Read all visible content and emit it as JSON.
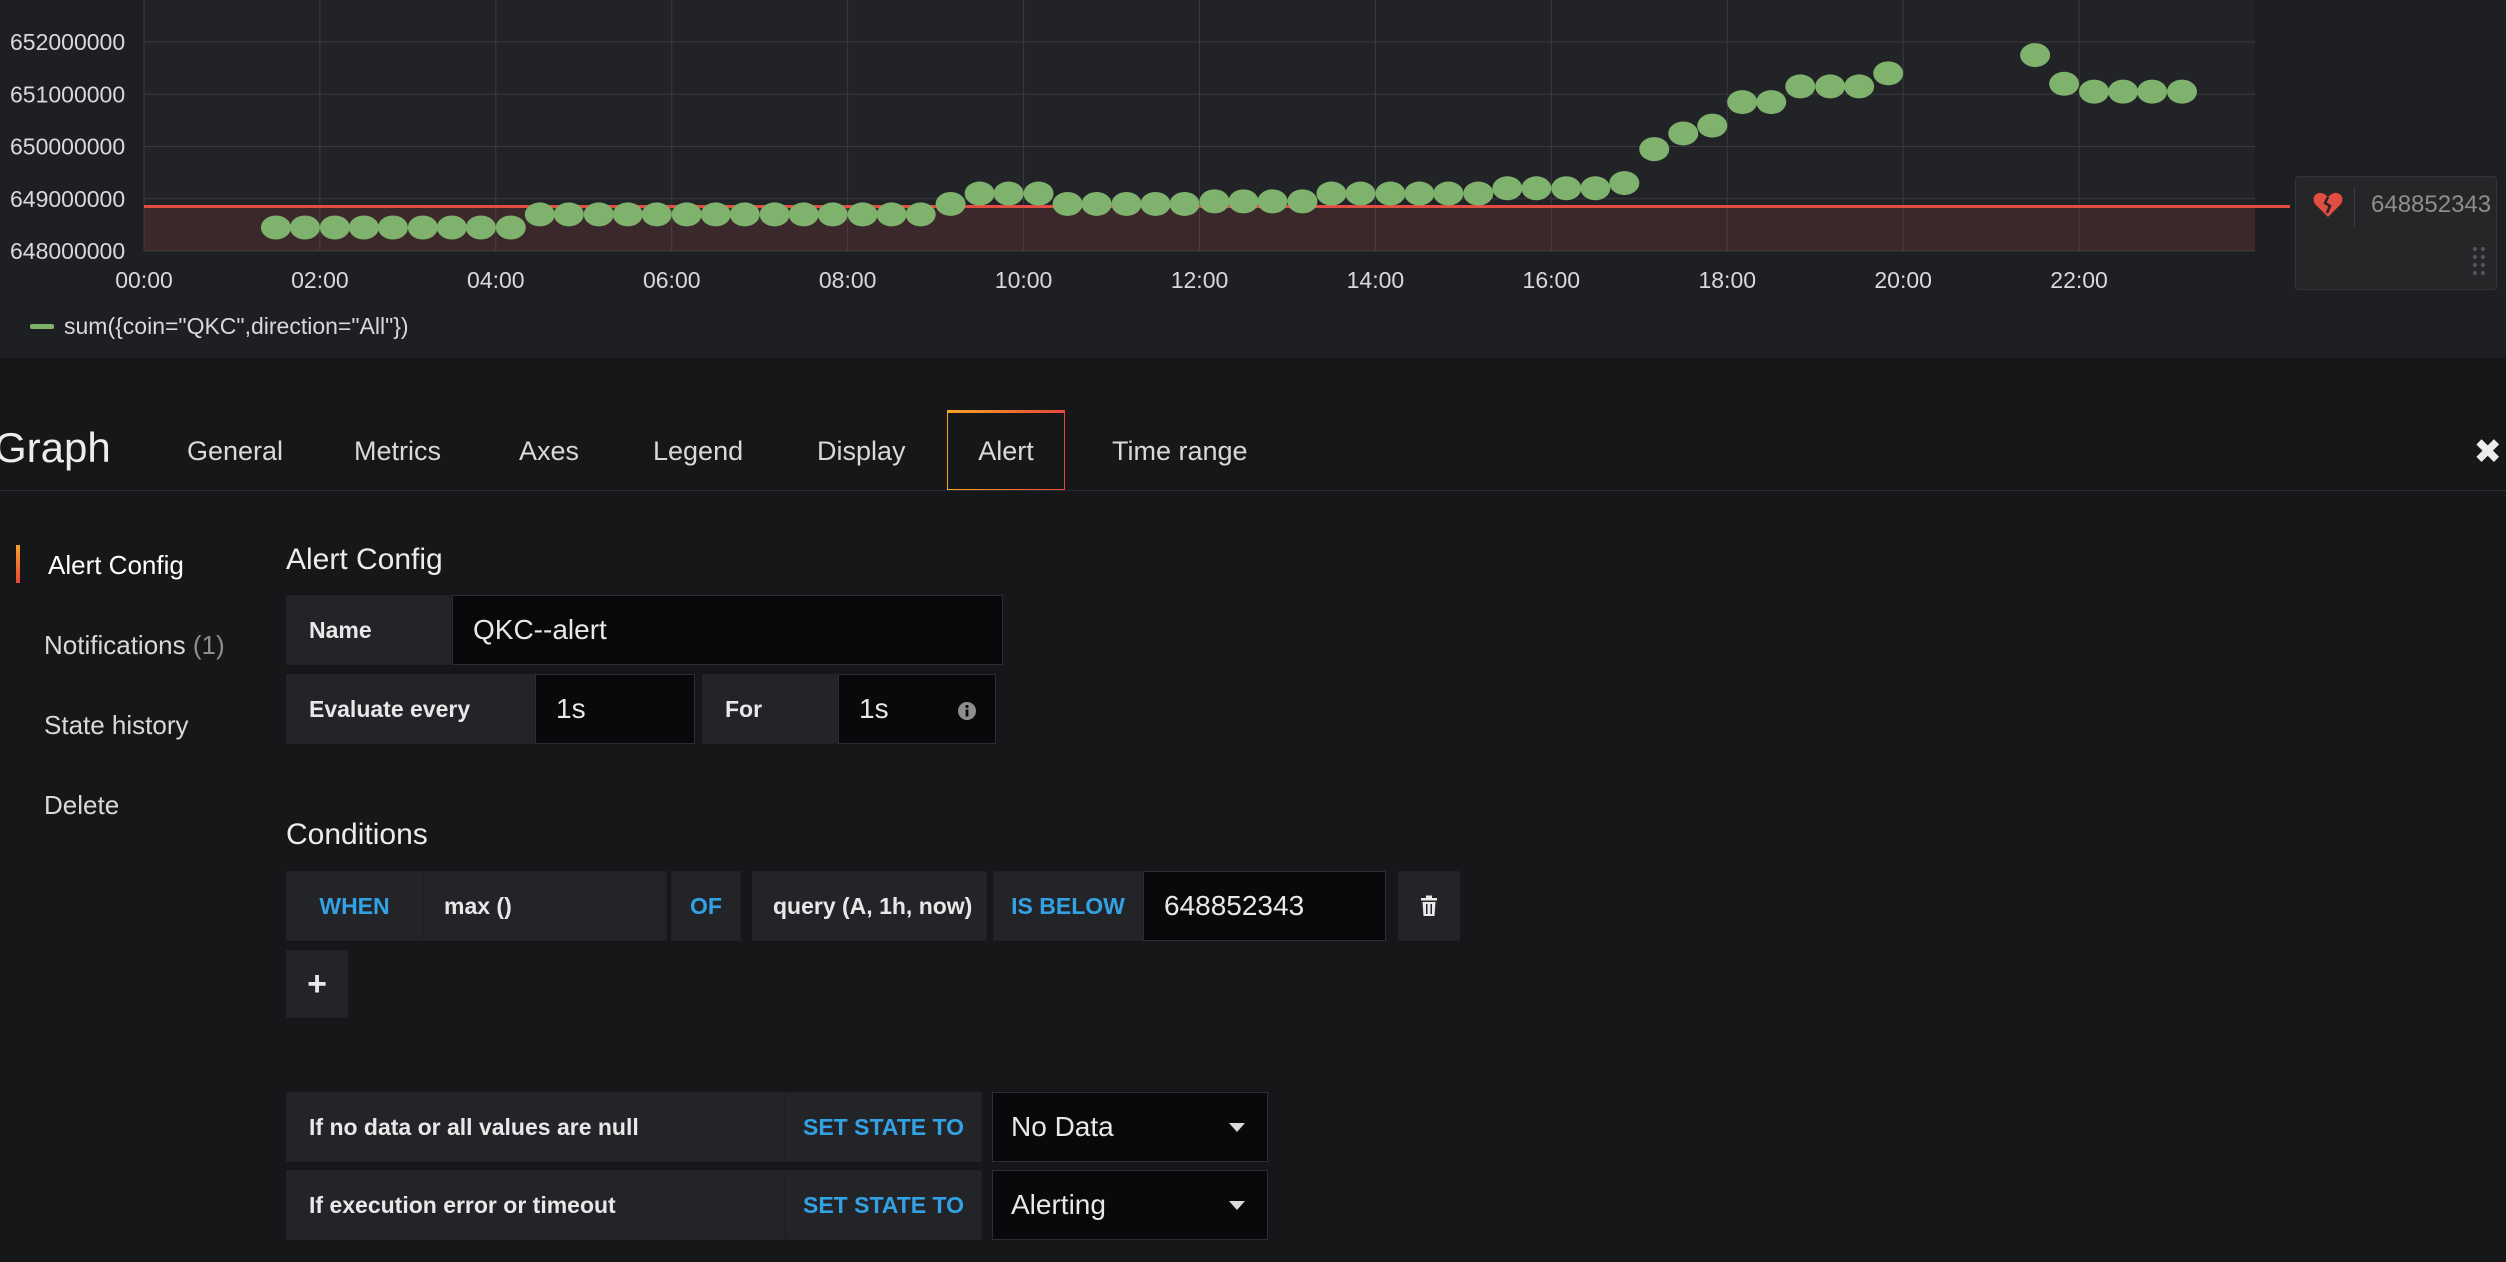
{
  "chart_data": {
    "type": "scatter",
    "x_unit": "hours",
    "xlim": [
      0,
      24
    ],
    "ylim": [
      648000000,
      652000000
    ],
    "y_ticks": [
      "652000000",
      "651000000",
      "650000000",
      "649000000",
      "648000000"
    ],
    "x_ticks": [
      "00:00",
      "02:00",
      "04:00",
      "06:00",
      "08:00",
      "10:00",
      "12:00",
      "14:00",
      "16:00",
      "18:00",
      "20:00",
      "22:00"
    ],
    "series": [
      {
        "name": "sum({coin=\"QKC\",direction=\"All\"})",
        "color": "#7eb26d",
        "x": [
          1.5,
          1.83,
          2.17,
          2.5,
          2.83,
          3.17,
          3.5,
          3.83,
          4.17,
          4.5,
          4.83,
          5.17,
          5.5,
          5.83,
          6.17,
          6.5,
          6.83,
          7.17,
          7.5,
          7.83,
          8.17,
          8.5,
          8.83,
          9.17,
          9.5,
          9.83,
          10.17,
          10.5,
          10.83,
          11.17,
          11.5,
          11.83,
          12.17,
          12.5,
          12.83,
          13.17,
          13.5,
          13.83,
          14.17,
          14.5,
          14.83,
          15.17,
          15.5,
          15.83,
          16.17,
          16.5,
          16.83,
          17.17,
          17.5,
          17.83,
          18.17,
          18.5,
          18.83,
          19.17,
          19.5,
          19.83,
          21.5,
          21.83,
          22.17,
          22.5,
          22.83,
          23.17
        ],
        "y": [
          648450000,
          648450000,
          648450000,
          648450000,
          648450000,
          648450000,
          648450000,
          648450000,
          648450000,
          648700000,
          648700000,
          648700000,
          648700000,
          648700000,
          648700000,
          648700000,
          648700000,
          648700000,
          648700000,
          648700000,
          648700000,
          648700000,
          648700000,
          648900000,
          649100000,
          649100000,
          649100000,
          648900000,
          648900000,
          648900000,
          648900000,
          648900000,
          648950000,
          648950000,
          648950000,
          648950000,
          649100000,
          649100000,
          649100000,
          649100000,
          649100000,
          649100000,
          649200000,
          649200000,
          649200000,
          649200000,
          649300000,
          649950000,
          650250000,
          650400000,
          650850000,
          650850000,
          651150000,
          651150000,
          651150000,
          651400000,
          651750000,
          651200000,
          651050000,
          651050000,
          651050000,
          651050000
        ]
      }
    ],
    "threshold": 648852343,
    "threshold_color": "#e24d42",
    "grid": true,
    "legend": "bottom-left"
  },
  "threshold_handle": {
    "value": "648852343"
  },
  "editor": {
    "title": "Graph",
    "tabs": [
      "General",
      "Metrics",
      "Axes",
      "Legend",
      "Display",
      "Alert",
      "Time range"
    ],
    "active_tab": "Alert"
  },
  "sidenav": {
    "items": [
      {
        "label": "Alert Config",
        "count": ""
      },
      {
        "label": "Notifications",
        "count": "(1)"
      },
      {
        "label": "State history",
        "count": ""
      },
      {
        "label": "Delete",
        "count": ""
      }
    ]
  },
  "alert_config": {
    "heading": "Alert Config",
    "name_label": "Name",
    "name_value": "QKC--alert",
    "evaluate_label": "Evaluate every",
    "evaluate_value": "1s",
    "for_label": "For",
    "for_value": "1s"
  },
  "conditions": {
    "heading": "Conditions",
    "when": "WHEN",
    "reducer": "max ()",
    "of": "OF",
    "query": "query (A, 1h, now)",
    "evaluator": "IS BELOW",
    "threshold": "648852343",
    "add_label": "+"
  },
  "no_data": {
    "label": "If no data or all values are null",
    "set_state": "SET STATE TO",
    "value": "No Data"
  },
  "exec_error": {
    "label": "If execution error or timeout",
    "set_state": "SET STATE TO",
    "value": "Alerting"
  },
  "icons": [
    "broken-heart-icon",
    "grip-icon",
    "close-icon",
    "info-icon",
    "trash-icon",
    "plus-icon",
    "caret-down-icon"
  ]
}
